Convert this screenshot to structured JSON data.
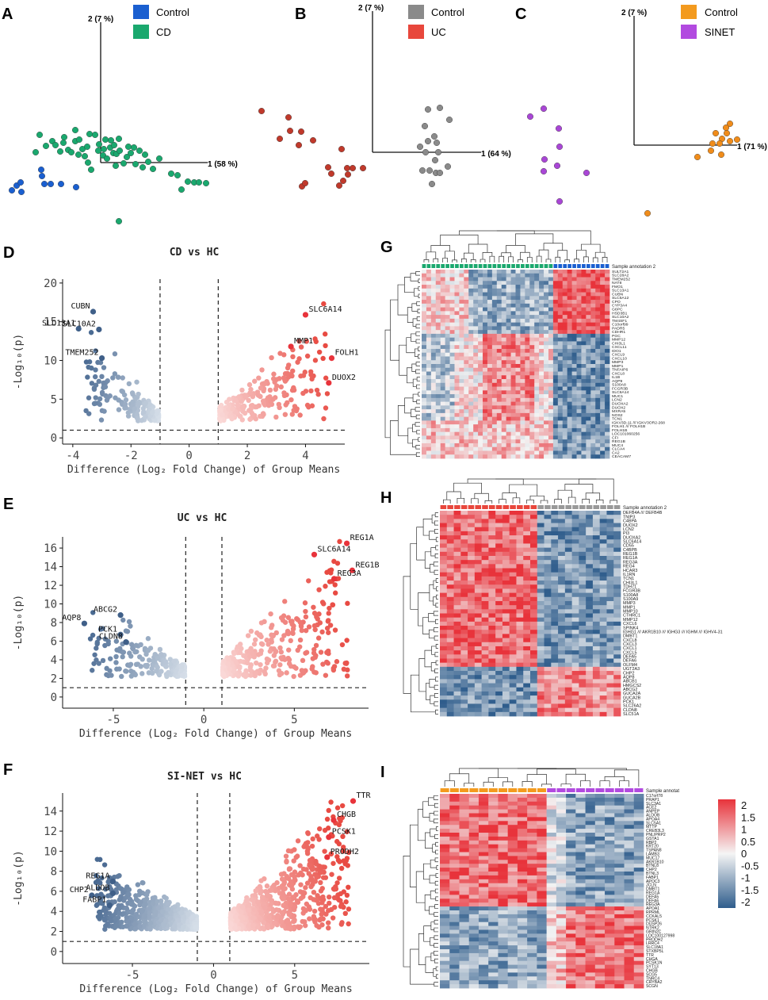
{
  "chart_data": [
    {
      "type": "scatter",
      "panel": "A",
      "subtype": "pca",
      "axis_x_label": "1 (58 %)",
      "axis_y_label": "2 (7 %)",
      "legend": [
        {
          "name": "Control",
          "color": "#1a5fd0"
        },
        {
          "name": "CD",
          "color": "#1aa86e"
        }
      ],
      "series": [
        {
          "name": "Control",
          "color": "#1a5fd0",
          "points": [
            [
              15,
              240
            ],
            [
              21,
              234
            ],
            [
              26,
              230
            ],
            [
              27,
              242
            ],
            [
              52,
              214
            ],
            [
              53,
              222
            ],
            [
              56,
              232
            ],
            [
              64,
              232
            ],
            [
              77,
              232
            ],
            [
              96,
              236
            ]
          ]
        },
        {
          "name": "CD",
          "color": "#1aa86e",
          "points": [
            [
              45,
              192
            ],
            [
              50,
              170
            ],
            [
              58,
              184
            ],
            [
              66,
              178
            ],
            [
              70,
              183
            ],
            [
              76,
              191
            ],
            [
              80,
              180
            ],
            [
              81,
              173
            ],
            [
              86,
              189
            ],
            [
              90,
              192
            ],
            [
              95,
              178
            ],
            [
              95,
              164
            ],
            [
              99,
              195
            ],
            [
              100,
              176
            ],
            [
              104,
              188
            ],
            [
              107,
              197
            ],
            [
              110,
              185
            ],
            [
              111,
              205
            ],
            [
              113,
              169
            ],
            [
              115,
              214
            ],
            [
              120,
              170
            ],
            [
              124,
              190
            ],
            [
              125,
              182
            ],
            [
              130,
              196
            ],
            [
              131,
              188
            ],
            [
              133,
              176
            ],
            [
              135,
              200
            ],
            [
              139,
              186
            ],
            [
              140,
              177
            ],
            [
              143,
              193
            ],
            [
              144,
              183
            ],
            [
              146,
              209
            ],
            [
              147,
              194
            ],
            [
              150,
              175
            ],
            [
              151,
              190
            ],
            [
              156,
              206
            ],
            [
              160,
              198
            ],
            [
              162,
              185
            ],
            [
              165,
              193
            ],
            [
              169,
              186
            ],
            [
              171,
              207
            ],
            [
              176,
              190
            ],
            [
              180,
              211
            ],
            [
              183,
              195
            ],
            [
              187,
              204
            ],
            [
              193,
              213
            ],
            [
              201,
              200
            ],
            [
              216,
              219
            ],
            [
              224,
              221
            ],
            [
              229,
              239
            ],
            [
              237,
              229
            ],
            [
              245,
              230
            ],
            [
              251,
              230
            ],
            [
              260,
              231
            ],
            [
              150,
              279
            ]
          ]
        }
      ]
    },
    {
      "type": "scatter",
      "panel": "B",
      "subtype": "pca",
      "axis_x_label": "1 (64 %)",
      "axis_y_label": "2 (7 %)",
      "legend": [
        {
          "name": "Control",
          "color": "#8a8a8a"
        },
        {
          "name": "UC",
          "color": "#e8473c"
        }
      ],
      "series": [
        {
          "name": "UC",
          "color": "#c0392b",
          "points": [
            [
              330,
              140
            ],
            [
              364,
              148
            ],
            [
              366,
              165
            ],
            [
              380,
              166
            ],
            [
              353,
              175
            ],
            [
              377,
              183
            ],
            [
              395,
              177
            ],
            [
              414,
              211
            ],
            [
              431,
              188
            ],
            [
              438,
              212
            ],
            [
              439,
              220
            ],
            [
              445,
              212
            ],
            [
              433,
              228
            ],
            [
              458,
              212
            ],
            [
              418,
              219
            ],
            [
              381,
              235
            ],
            [
              385,
              231
            ],
            [
              428,
              234
            ]
          ]
        },
        {
          "name": "Control",
          "color": "#8a8a8a",
          "points": [
            [
              540,
              138
            ],
            [
              555,
              136
            ],
            [
              567,
              151
            ],
            [
              536,
              159
            ],
            [
              548,
              172
            ],
            [
              540,
              178
            ],
            [
              530,
              185
            ],
            [
              551,
              180
            ],
            [
              537,
              192
            ],
            [
              553,
              192
            ],
            [
              549,
              202
            ],
            [
              533,
              215
            ],
            [
              542,
              215
            ],
            [
              550,
              218
            ],
            [
              555,
              218
            ],
            [
              565,
              210
            ],
            [
              545,
              232
            ]
          ]
        }
      ]
    },
    {
      "type": "scatter",
      "panel": "C",
      "subtype": "pca",
      "axis_x_label": "1 (71 %)",
      "axis_y_label": "2 (7 %)",
      "legend": [
        {
          "name": "Control",
          "color": "#f39a1e"
        },
        {
          "name": "SINET",
          "color": "#b24ae0"
        }
      ],
      "series": [
        {
          "name": "SINET",
          "color": "#a946d6",
          "points": [
            [
              669,
              147
            ],
            [
              686,
              137
            ],
            [
              705,
              162
            ],
            [
              706,
              185
            ],
            [
              687,
              201
            ],
            [
              686,
              216
            ],
            [
              703,
              209
            ],
            [
              740,
              218
            ],
            [
              706,
              254
            ]
          ]
        },
        {
          "name": "Control",
          "color": "#f08c1a",
          "points": [
            [
              921,
              156
            ],
            [
              916,
              161
            ],
            [
              917,
              168
            ],
            [
              903,
              168
            ],
            [
              911,
              175
            ],
            [
              921,
              178
            ],
            [
              908,
              181
            ],
            [
              899,
              181
            ],
            [
              897,
              190
            ],
            [
              910,
              195
            ],
            [
              930,
              176
            ],
            [
              880,
              198
            ],
            [
              817,
              269
            ]
          ]
        }
      ]
    },
    {
      "type": "scatter",
      "panel": "D",
      "subtype": "volcano",
      "title": "CD vs HC",
      "xlabel": "Difference (Log₂ Fold Change) of Group Means",
      "ylabel": "-Log₁₀(p)",
      "xlim": [
        -4.35,
        5.35
      ],
      "ylim": [
        -0.8,
        20.5
      ],
      "xticks": [
        -4,
        -2,
        0,
        2,
        4
      ],
      "yticks": [
        0,
        5,
        10,
        15,
        20
      ],
      "fc_cutoffs": [
        -1,
        1
      ],
      "p_cutoff": 1.0,
      "labels": [
        {
          "gene": "CUBN",
          "x": -3.3,
          "y": 16.3
        },
        {
          "gene": "SLC10A2",
          "x": -3.1,
          "y": 14.0
        },
        {
          "gene": "SLC13A1",
          "x": -3.8,
          "y": 14.1
        },
        {
          "gene": "TMEM252",
          "x": -3.0,
          "y": 10.3
        },
        {
          "gene": "SLC6A14",
          "x": 4.0,
          "y": 15.9
        },
        {
          "gene": "MMP1",
          "x": 3.5,
          "y": 11.8
        },
        {
          "gene": "FOLH1",
          "x": 4.9,
          "y": 10.3
        },
        {
          "gene": "DUOX2",
          "x": 4.8,
          "y": 7.1
        }
      ]
    },
    {
      "type": "scatter",
      "panel": "E",
      "subtype": "volcano",
      "title": "UC vs HC",
      "xlabel": "Difference (Log₂ Fold Change) of Group Means",
      "ylabel": "-Log₁₀(p)",
      "xlim": [
        -7.8,
        9.1
      ],
      "ylim": [
        -1.2,
        17.2
      ],
      "xticks": [
        -5,
        0,
        5
      ],
      "yticks": [
        0,
        2,
        4,
        6,
        8,
        10,
        12,
        14,
        16
      ],
      "fc_cutoffs": [
        -1,
        1
      ],
      "p_cutoff": 1.0,
      "labels": [
        {
          "gene": "REG1A",
          "x": 7.9,
          "y": 16.5
        },
        {
          "gene": "SLC6A14",
          "x": 6.1,
          "y": 15.3
        },
        {
          "gene": "REG1B",
          "x": 8.2,
          "y": 13.6
        },
        {
          "gene": "REG3A",
          "x": 7.2,
          "y": 12.7
        },
        {
          "gene": "ABCG2",
          "x": -4.6,
          "y": 8.8
        },
        {
          "gene": "AQP8",
          "x": -6.6,
          "y": 7.9
        },
        {
          "gene": "PCK1",
          "x": -4.6,
          "y": 6.7
        },
        {
          "gene": "CLDN8",
          "x": -4.3,
          "y": 5.9
        }
      ]
    },
    {
      "type": "scatter",
      "panel": "F",
      "subtype": "volcano",
      "title": "SI-NET vs HC",
      "xlabel": "Difference (Log₂ Fold Change) of Group Means",
      "ylabel": "-Log₁₀(p)",
      "xlim": [
        -9.3,
        9.6
      ],
      "ylim": [
        -1.2,
        15.8
      ],
      "xticks": [
        -5,
        0,
        5
      ],
      "yticks": [
        0,
        2,
        4,
        6,
        8,
        10,
        12,
        14
      ],
      "fc_cutoffs": [
        -1,
        1
      ],
      "p_cutoff": 1.0,
      "labels": [
        {
          "gene": "TTR",
          "x": 8.6,
          "y": 15.0
        },
        {
          "gene": "CHGB",
          "x": 7.4,
          "y": 13.1
        },
        {
          "gene": "PCSK1",
          "x": 7.1,
          "y": 11.4
        },
        {
          "gene": "PRODH2",
          "x": 7.0,
          "y": 9.4
        },
        {
          "gene": "REG1A",
          "x": -6.2,
          "y": 7.0
        },
        {
          "gene": "CHP2",
          "x": -7.5,
          "y": 5.6
        },
        {
          "gene": "ALDOB",
          "x": -6.2,
          "y": 5.8
        },
        {
          "gene": "FABP1",
          "x": -6.4,
          "y": 4.6
        }
      ]
    },
    {
      "type": "heatmap",
      "panel": "G",
      "annotation_label": "Sample annotation 2",
      "columns_groups": [
        {
          "name": "CD",
          "count": 28,
          "color": "#1aa86e"
        },
        {
          "name": "Control",
          "count": 12,
          "color": "#1a5fd0"
        }
      ],
      "row_labels": [
        "SULT2A1",
        "SLC28A2",
        "TMEM252",
        "NAT8",
        "FMO1",
        "SLC13A1",
        "CUBN",
        "SLC5A12",
        "CPO",
        "CYP3A4",
        "G6PC",
        "HSD3B1",
        "SLC10A2",
        "TM4SF1",
        "C10orf99",
        "PADR5",
        "CDHR1",
        "PGC",
        "MMP12",
        "CHI3L1",
        "CXCL11",
        "IDO1",
        "CXCL9",
        "CXCL10",
        "MMP3",
        "MMP1",
        "TNFAIP6",
        "CXCL8",
        "IL1B",
        "AQP9",
        "S100A8",
        "FCGR3B",
        "SLC6A14",
        "MUC1",
        "LCN2",
        "DUOXA2",
        "DUOX2",
        "MXRA5",
        "NOS2",
        "TCN1",
        "IGKV3D-11 /// IGKV3OR2-268",
        "FOLH1 /// FOLH1B",
        "FOLH1B",
        "LOC101060256",
        "CFI",
        "REG1B",
        "MUC4",
        "CLCA4",
        "CA2",
        "CEACAM7"
      ]
    },
    {
      "type": "heatmap",
      "panel": "H",
      "annotation_label": "Sample annotation 2",
      "columns_groups": [
        {
          "name": "UC",
          "count": 14,
          "color": "#e8473c"
        },
        {
          "name": "Control",
          "count": 12,
          "color": "#999999"
        }
      ],
      "row_labels": [
        "DEFB4A /// DEFB4B",
        "TNIP3",
        "C4BPA",
        "DUOX2",
        "LCN2",
        "PI3",
        "DUOXA2",
        "SLC6A14",
        "CD55",
        "C4BPB",
        "REG1B",
        "REG1A",
        "REG3A",
        "REG4",
        "HCAR3",
        "IL1RN",
        "TCN1",
        "CHI3L1",
        "TDH71",
        "FCGR3B",
        "S100A8",
        "S100A9",
        "MMP3",
        "MMP1",
        "MMP10",
        "CTHRC1",
        "MMP12",
        "CXCL6",
        "SPINK4",
        "IGHG1 /// AKR1B10 /// IGHG3 /// IGHM /// IGHV4-31",
        "DMBT1",
        "CXCL8",
        "CXCL3",
        "CXCL1",
        "CXCL5",
        "DEFA5",
        "DEFA6",
        "OLFM4",
        "UGT2A3",
        "CHP2",
        "AQP8",
        "ABCB1",
        "HMGCS2",
        "ABCG2",
        "GUCA2A",
        "GUCA2B",
        "PCK1",
        "SLC26A2",
        "CLDN8",
        "SLC51A"
      ]
    },
    {
      "type": "heatmap",
      "panel": "I",
      "annotation_label": "Sample annotat",
      "columns_groups": [
        {
          "name": "Control",
          "count": 11,
          "color": "#f39a1e"
        },
        {
          "name": "SINET",
          "count": 10,
          "color": "#b24ae0"
        }
      ],
      "colorbar_ticks": [
        "2",
        "1.5",
        "1",
        "0.5",
        "0",
        "-0.5",
        "-1",
        "-1.5",
        "-2"
      ],
      "row_labels": [
        "C17orf78",
        "PRAP1",
        "SLC3A1",
        "ACE2",
        "ANPEP",
        "ALDOB",
        "APOA4",
        "SLC5A1",
        "MTTP",
        "CREB3L3",
        "PNLIPRP2",
        "GSTA1",
        "RBP2",
        "KRT20",
        "TSPAN8",
        "LAMB3",
        "MUC17",
        "AKR1B10",
        "BTNL8",
        "CHP2",
        "BTNL3",
        "FABP1",
        "APOC3",
        "JCLN",
        "DMBT1",
        "REG1A",
        "DEFA5",
        "DEFA6",
        "REG3A",
        "APOA1",
        "RPRML",
        "CCKAL5",
        "PCSK1",
        "DUSP26",
        "NTRK2",
        "GRIN2C",
        "LOC100127998",
        "PRODH2",
        "LRRC4",
        "SLC18A1",
        "STXBP5L",
        "TTR",
        "CHGA",
        "PCSK1N",
        "SYT13",
        "CHGB",
        "SCG5",
        "TNRC4",
        "CRYBA2",
        "SCGN"
      ]
    }
  ]
}
